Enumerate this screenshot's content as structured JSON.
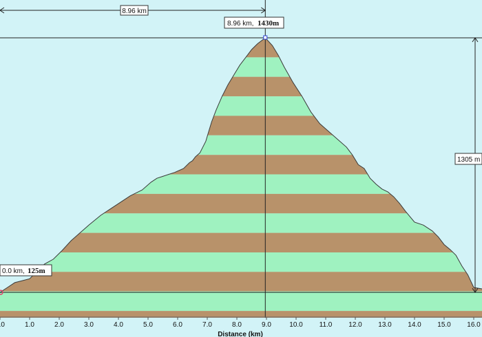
{
  "chart_data": {
    "type": "area",
    "xlabel": "Distance  (km)",
    "x_ticks": [
      "0.0",
      "1.0",
      "2.0",
      "3.0",
      "4.0",
      "5.0",
      "6.0",
      "7.0",
      "8.0",
      "9.0",
      "10.0",
      "11.0",
      "12.0",
      "13.0",
      "14.0",
      "15.0",
      "16.0"
    ],
    "xlim": [
      0,
      16.0
    ],
    "ylim_m": [
      -5,
      1430
    ],
    "band_interval_m": 100,
    "band_colors": [
      "#b8926a",
      "#9ff2c0"
    ],
    "profile": {
      "x_km": [
        0,
        0.25,
        0.5,
        0.75,
        1.0,
        1.5,
        1.8,
        2.1,
        2.4,
        2.7,
        3.0,
        3.4,
        3.7,
        4.0,
        4.4,
        4.8,
        5.1,
        5.3,
        5.5,
        5.7,
        5.9,
        6.2,
        6.4,
        6.5,
        6.6,
        6.75,
        6.85,
        6.95,
        7.05,
        7.15,
        7.3,
        7.5,
        7.7,
        7.9,
        8.1,
        8.3,
        8.5,
        8.7,
        8.96,
        9.2,
        9.4,
        9.6,
        9.9,
        10.2,
        10.5,
        10.8,
        11.1,
        11.4,
        11.7,
        11.9,
        12.1,
        12.3,
        12.5,
        12.7,
        12.9,
        13.1,
        13.3,
        13.5,
        13.7,
        14.0,
        14.3,
        14.6,
        14.8,
        15.0,
        15.2,
        15.4,
        15.6,
        15.8,
        16.0
      ],
      "elev_m": [
        125,
        150,
        175,
        185,
        195,
        270,
        295,
        340,
        390,
        430,
        470,
        520,
        550,
        580,
        620,
        650,
        690,
        710,
        720,
        730,
        740,
        760,
        790,
        800,
        820,
        840,
        870,
        900,
        950,
        1000,
        1060,
        1130,
        1190,
        1240,
        1290,
        1330,
        1370,
        1400,
        1430,
        1390,
        1340,
        1280,
        1200,
        1130,
        1050,
        990,
        950,
        910,
        870,
        830,
        780,
        760,
        710,
        680,
        655,
        640,
        615,
        580,
        540,
        485,
        470,
        440,
        410,
        370,
        345,
        315,
        260,
        215,
        150
      ]
    },
    "annotations": {
      "peak_distance": "8.96 km",
      "peak_label_km": "8.96 km,",
      "peak_label_m": "1430m",
      "start_label_km": "0.0 km,",
      "start_label_m": "125m",
      "height_difference": "1305 m"
    }
  }
}
